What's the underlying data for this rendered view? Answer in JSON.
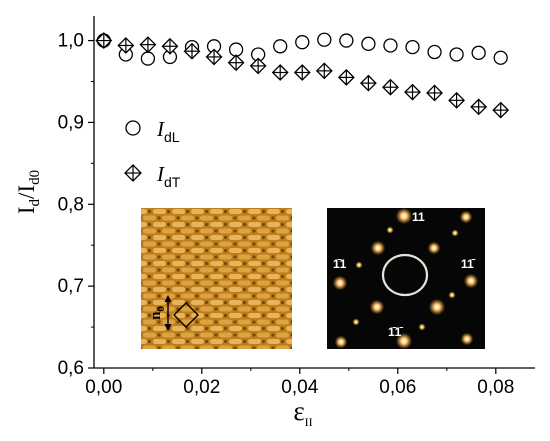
{
  "chart_data": {
    "type": "scatter",
    "xlabel": "ε",
    "xlabel_sub": "II",
    "ylabel": "I",
    "ylabel_parts": [
      "I",
      "d",
      "/I",
      "d0"
    ],
    "xlim": [
      -0.002,
      0.088
    ],
    "ylim": [
      0.6,
      1.03
    ],
    "xticks": [
      0.0,
      0.02,
      0.04,
      0.06,
      0.08
    ],
    "xtick_labels": [
      "0,00",
      "0,02",
      "0,04",
      "0,06",
      "0,08"
    ],
    "yticks": [
      0.6,
      0.7,
      0.8,
      0.9,
      1.0
    ],
    "ytick_labels": [
      "0,6",
      "0,7",
      "0,8",
      "0,9",
      "1,0"
    ],
    "grid": false,
    "legend_position": "upper-left",
    "series": [
      {
        "name": "I",
        "name_sub": "dL",
        "marker": "circle",
        "x": [
          0.0,
          0.0045,
          0.009,
          0.0135,
          0.018,
          0.0225,
          0.027,
          0.0315,
          0.036,
          0.0405,
          0.045,
          0.0495,
          0.054,
          0.0585,
          0.063,
          0.0675,
          0.072,
          0.0765,
          0.081
        ],
        "y": [
          1.0,
          0.983,
          0.978,
          0.98,
          0.992,
          0.993,
          0.989,
          0.983,
          0.993,
          0.998,
          1.001,
          1.0,
          0.996,
          0.994,
          0.992,
          0.986,
          0.983,
          0.985,
          0.979
        ]
      },
      {
        "name": "I",
        "name_sub": "dT",
        "marker": "diamond-cross",
        "x": [
          0.0,
          0.0045,
          0.009,
          0.0135,
          0.018,
          0.0225,
          0.027,
          0.0315,
          0.036,
          0.0405,
          0.045,
          0.0495,
          0.054,
          0.0585,
          0.063,
          0.0675,
          0.072,
          0.0765,
          0.081
        ],
        "y": [
          1.0,
          0.994,
          0.995,
          0.993,
          0.987,
          0.98,
          0.973,
          0.969,
          0.961,
          0.961,
          0.963,
          0.955,
          0.948,
          0.943,
          0.937,
          0.936,
          0.927,
          0.919,
          0.915
        ]
      }
    ]
  },
  "insets": {
    "stm": {
      "label": "n",
      "label_sub": "0",
      "colors": {
        "base": "#c8841e",
        "light": "#f2c063",
        "dark": "#7a4a08"
      }
    },
    "fft": {
      "spot_labels": [
        "11",
        "1̄1",
        "11̄",
        "1̄1̄"
      ],
      "colors": {
        "background": "#060606",
        "spot": "#ffb04a",
        "ring": "#e8e2d6"
      }
    }
  }
}
